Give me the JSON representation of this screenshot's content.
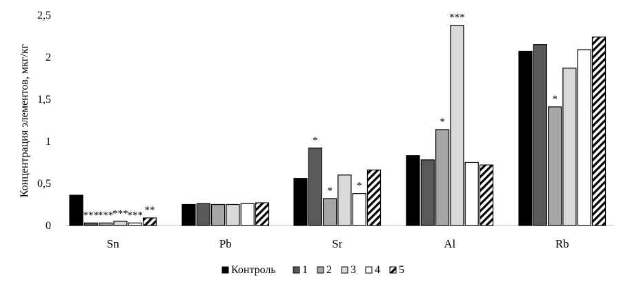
{
  "chart_data": {
    "type": "bar",
    "ylabel": "Концентрация элементов, мкг/кг",
    "ylim": [
      0,
      2.5
    ],
    "yticks": [
      "0",
      "0,5",
      "1",
      "1,5",
      "2",
      "2,5"
    ],
    "grid": false,
    "legend_position": "bottom",
    "categories": [
      "Sn",
      "Pb",
      "Sr",
      "Al",
      "Rb"
    ],
    "series": [
      {
        "name": "Контроль",
        "fill": "solid",
        "color": "#000000",
        "values": [
          0.36,
          0.25,
          0.56,
          0.83,
          2.07
        ]
      },
      {
        "name": "1",
        "fill": "solid",
        "color": "#595959",
        "values": [
          0.03,
          0.26,
          0.92,
          0.78,
          2.15
        ]
      },
      {
        "name": "2",
        "fill": "solid",
        "color": "#a6a6a6",
        "values": [
          0.03,
          0.25,
          0.32,
          1.14,
          1.41
        ]
      },
      {
        "name": "3",
        "fill": "solid",
        "color": "#d9d9d9",
        "values": [
          0.05,
          0.25,
          0.6,
          2.38,
          1.87
        ]
      },
      {
        "name": "4",
        "fill": "solid",
        "color": "#ffffff",
        "values": [
          0.03,
          0.26,
          0.38,
          0.75,
          2.09
        ]
      },
      {
        "name": "5",
        "fill": "hatched",
        "color": "#000000",
        "values": [
          0.09,
          0.27,
          0.66,
          0.72,
          2.24
        ]
      }
    ],
    "significance": [
      [
        "",
        "",
        "",
        "",
        ""
      ],
      [
        "***",
        "",
        "*",
        "",
        ""
      ],
      [
        "***",
        "",
        "*",
        "*",
        "*"
      ],
      [
        "***",
        "",
        "",
        "***",
        ""
      ],
      [
        "***",
        "",
        "*",
        "",
        ""
      ],
      [
        "**",
        "",
        "",
        "",
        ""
      ]
    ]
  }
}
